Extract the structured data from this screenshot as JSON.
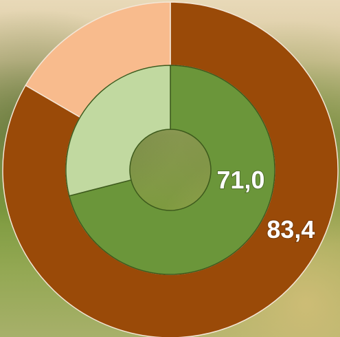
{
  "chart_data": {
    "type": "donut",
    "series": [
      {
        "colors": [
          "#9a4a08",
          "#f8bb8d"
        ],
        "values": [
          83.4,
          16.6
        ],
        "value_labels": [
          "83,4",
          null
        ]
      },
      {
        "colors": [
          "#6b963a",
          "#c1d9a0"
        ],
        "values": [
          71.0,
          29.0
        ],
        "value_labels": [
          "71,0",
          null
        ]
      }
    ]
  }
}
